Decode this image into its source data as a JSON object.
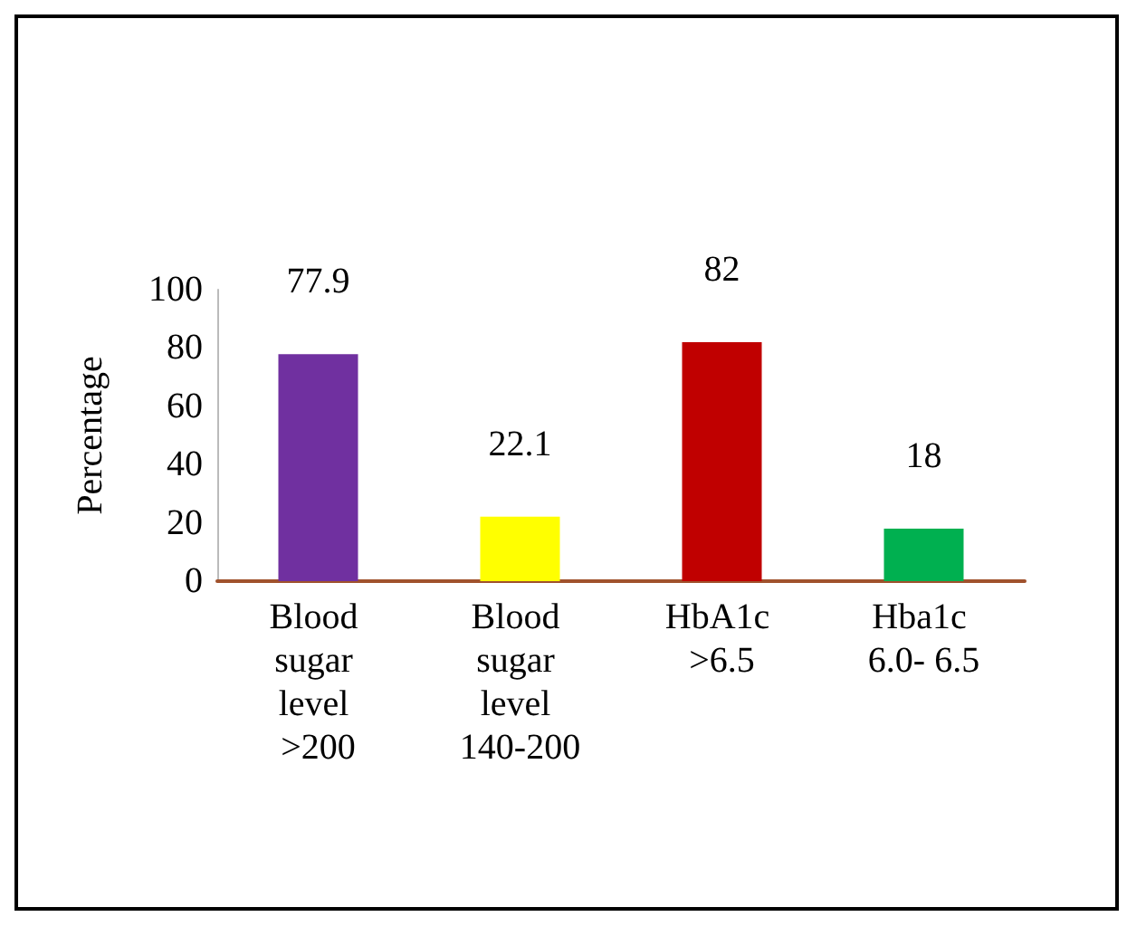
{
  "chart_data": {
    "type": "bar",
    "ylabel": "Percentage",
    "categories": [
      "Blood sugar level >200",
      "Blood sugar level 140-200",
      "HbA1c >6.5",
      "Hba1c 6.0- 6.5"
    ],
    "values": [
      77.9,
      22.1,
      82,
      18
    ],
    "colors": [
      "#7030a0",
      "#ffff00",
      "#c00000",
      "#00b050"
    ],
    "ylim": [
      0,
      100
    ],
    "yticks": [
      0,
      20,
      40,
      60,
      80,
      100
    ],
    "data_labels": true,
    "grid": false
  }
}
